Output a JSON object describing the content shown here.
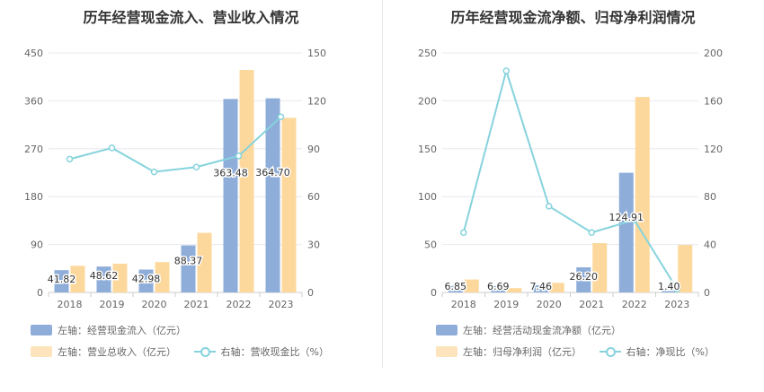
{
  "chart_data": [
    {
      "type": "bar",
      "title": "历年经营现金流入、营业收入情况",
      "categories": [
        "2018",
        "2019",
        "2020",
        "2021",
        "2022",
        "2023"
      ],
      "left_axis": {
        "min": 0,
        "max": 450,
        "ticks": [
          0,
          90,
          180,
          270,
          360,
          450
        ]
      },
      "right_axis": {
        "min": 0,
        "max": 150,
        "ticks": [
          0,
          30,
          60,
          90,
          120,
          150
        ]
      },
      "series": [
        {
          "name": "左轴：经营现金流入（亿元）",
          "axis": "left",
          "kind": "bar",
          "color": "#8eadd9",
          "values": [
            41.82,
            48.62,
            42.98,
            88.37,
            363.48,
            364.7
          ],
          "labels": [
            "41.82",
            "48.62",
            "42.98",
            "88.37",
            "363.48",
            "364.70"
          ]
        },
        {
          "name": "左轴：营业总收入（亿元）",
          "axis": "left",
          "kind": "bar",
          "color": "#fdd89c",
          "values": [
            50,
            54,
            57,
            112,
            418,
            328
          ]
        },
        {
          "name": "右轴：营收现金比（%）",
          "axis": "right",
          "kind": "line",
          "color": "#86d3dd",
          "values": [
            83.5,
            90.5,
            75.5,
            78.5,
            85.5,
            110
          ]
        }
      ]
    },
    {
      "type": "bar",
      "title": "历年经营现金流净额、归母净利润情况",
      "categories": [
        "2018",
        "2019",
        "2020",
        "2021",
        "2022",
        "2023"
      ],
      "left_axis": {
        "min": 0,
        "max": 250,
        "ticks": [
          0,
          50,
          100,
          150,
          200,
          250
        ]
      },
      "right_axis": {
        "min": 0,
        "max": 200,
        "ticks": [
          0,
          40,
          80,
          120,
          160,
          200
        ]
      },
      "series": [
        {
          "name": "左轴：经营活动现金流净额（亿元）",
          "axis": "left",
          "kind": "bar",
          "color": "#8eadd9",
          "values": [
            6.85,
            6.69,
            7.46,
            26.2,
            124.91,
            1.4
          ],
          "labels": [
            "6.85",
            "6.69",
            "7.46",
            "26.20",
            "124.91",
            "1.40"
          ]
        },
        {
          "name": "左轴：归母净利润（亿元）",
          "axis": "left",
          "kind": "bar",
          "color": "#fdd89c",
          "values": [
            13.5,
            4.5,
            10,
            51.5,
            204,
            49.5
          ]
        },
        {
          "name": "右轴：净现比（%）",
          "axis": "right",
          "kind": "line",
          "color": "#86d3dd",
          "values": [
            50,
            185,
            72,
            50,
            60.5,
            2.8
          ]
        }
      ]
    }
  ]
}
